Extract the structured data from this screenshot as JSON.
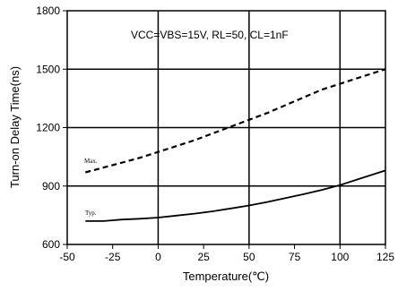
{
  "chart_data": {
    "type": "line",
    "title": "",
    "annotation": "VCC=VBS=15V, RL=50, CL=1nF",
    "xlabel": "Temperature(℃)",
    "ylabel": "Turn-on Delay Time(ns)",
    "xlim": [
      -50,
      125
    ],
    "ylim": [
      600,
      1800
    ],
    "xticks": [
      -50,
      -25,
      0,
      25,
      50,
      75,
      100,
      125
    ],
    "yticks": [
      600,
      900,
      1200,
      1500,
      1800
    ],
    "grid": true,
    "series": [
      {
        "name": "Max.",
        "style": "dashed",
        "x": [
          -40,
          -30,
          -20,
          -10,
          0,
          10,
          20,
          30,
          40,
          50,
          60,
          70,
          80,
          90,
          100,
          110,
          120,
          125
        ],
        "y": [
          970,
          995,
          1020,
          1045,
          1075,
          1105,
          1135,
          1170,
          1205,
          1240,
          1275,
          1315,
          1355,
          1395,
          1425,
          1455,
          1485,
          1500
        ]
      },
      {
        "name": "Typ.",
        "style": "solid",
        "x": [
          -40,
          -30,
          -20,
          -10,
          0,
          10,
          20,
          30,
          40,
          50,
          60,
          70,
          80,
          90,
          100,
          110,
          120,
          125
        ],
        "y": [
          720,
          720,
          728,
          732,
          738,
          748,
          758,
          770,
          785,
          800,
          818,
          838,
          858,
          880,
          905,
          935,
          965,
          980
        ]
      }
    ]
  }
}
